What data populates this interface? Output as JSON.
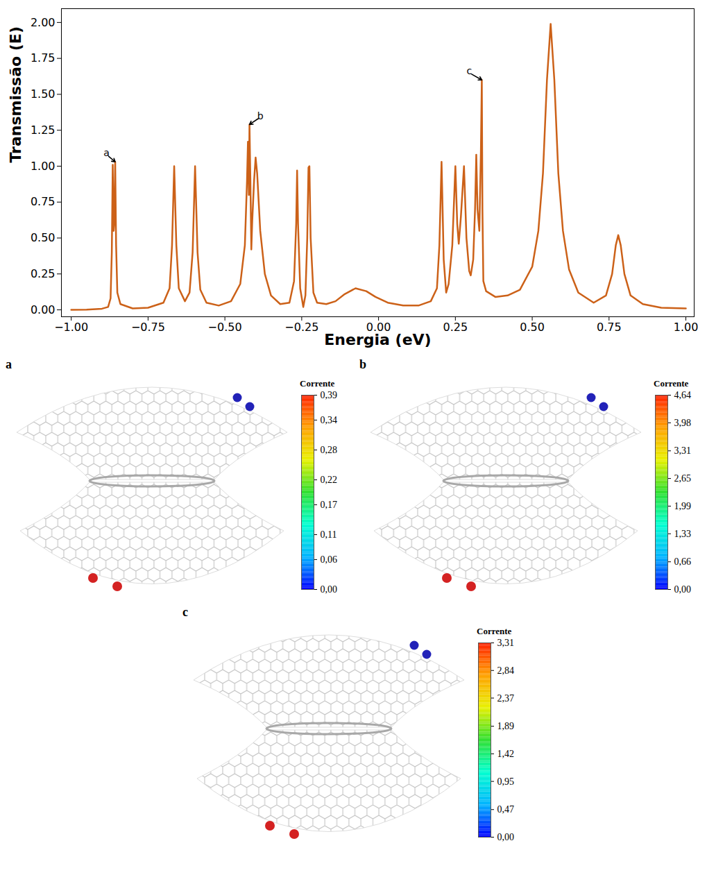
{
  "chart_data": [
    {
      "type": "line",
      "xlabel": "Energia (eV)",
      "ylabel": "Transmissão (E)",
      "color": "#cc6118",
      "x": [
        -1,
        -0.95,
        -0.9,
        -0.88,
        -0.872,
        -0.868,
        -0.865,
        -0.862,
        -0.86,
        -0.857,
        -0.854,
        -0.85,
        -0.84,
        -0.8,
        -0.75,
        -0.7,
        -0.68,
        -0.672,
        -0.665,
        -0.658,
        -0.65,
        -0.63,
        -0.615,
        -0.605,
        -0.597,
        -0.589,
        -0.58,
        -0.56,
        -0.52,
        -0.48,
        -0.45,
        -0.435,
        -0.428,
        -0.425,
        -0.422,
        -0.42,
        -0.417,
        -0.414,
        -0.411,
        -0.405,
        -0.4,
        -0.395,
        -0.385,
        -0.37,
        -0.35,
        -0.32,
        -0.29,
        -0.275,
        -0.268,
        -0.265,
        -0.262,
        -0.255,
        -0.245,
        -0.238,
        -0.232,
        -0.228,
        -0.225,
        -0.221,
        -0.212,
        -0.2,
        -0.17,
        -0.14,
        -0.11,
        -0.075,
        -0.04,
        -0.01,
        0.03,
        0.08,
        0.13,
        0.17,
        0.19,
        0.198,
        0.205,
        0.212,
        0.22,
        0.228,
        0.24,
        0.25,
        0.256,
        0.261,
        0.268,
        0.278,
        0.286,
        0.295,
        0.3,
        0.308,
        0.314,
        0.318,
        0.322,
        0.328,
        0.333,
        0.336,
        0.338,
        0.341,
        0.35,
        0.38,
        0.42,
        0.46,
        0.5,
        0.52,
        0.535,
        0.548,
        0.56,
        0.572,
        0.585,
        0.6,
        0.62,
        0.65,
        0.7,
        0.74,
        0.76,
        0.772,
        0.78,
        0.788,
        0.8,
        0.82,
        0.86,
        0.92,
        1.0
      ],
      "values": [
        0.0,
        0.002,
        0.008,
        0.02,
        0.08,
        0.4,
        1.01,
        0.55,
        0.6,
        1.03,
        0.45,
        0.12,
        0.04,
        0.01,
        0.015,
        0.05,
        0.15,
        0.45,
        1.0,
        0.45,
        0.15,
        0.06,
        0.12,
        0.4,
        1.0,
        0.4,
        0.14,
        0.05,
        0.03,
        0.06,
        0.18,
        0.45,
        0.9,
        1.17,
        0.8,
        1.29,
        0.9,
        0.42,
        0.62,
        0.9,
        1.06,
        0.95,
        0.55,
        0.25,
        0.1,
        0.04,
        0.05,
        0.2,
        0.6,
        0.97,
        0.6,
        0.15,
        0.02,
        0.1,
        0.5,
        0.99,
        1.0,
        0.5,
        0.12,
        0.05,
        0.04,
        0.06,
        0.11,
        0.15,
        0.13,
        0.09,
        0.05,
        0.03,
        0.03,
        0.06,
        0.15,
        0.45,
        1.03,
        0.35,
        0.12,
        0.18,
        0.45,
        1.0,
        0.6,
        0.46,
        0.65,
        1.0,
        0.5,
        0.27,
        0.24,
        0.35,
        0.7,
        1.08,
        0.7,
        0.55,
        1.1,
        1.6,
        0.7,
        0.2,
        0.13,
        0.09,
        0.1,
        0.14,
        0.3,
        0.55,
        0.95,
        1.6,
        1.99,
        1.6,
        0.95,
        0.55,
        0.28,
        0.12,
        0.05,
        0.1,
        0.25,
        0.45,
        0.52,
        0.45,
        0.25,
        0.1,
        0.04,
        0.015,
        0.01
      ],
      "xlim": [
        -1.032,
        1.027
      ],
      "ylim": [
        -0.048,
        2.096
      ],
      "xticks": [
        {
          "value": -1,
          "label": "−1.00"
        },
        {
          "value": -0.75,
          "label": "−0.75"
        },
        {
          "value": -0.5,
          "label": "−0.50"
        },
        {
          "value": -0.25,
          "label": "−0.25"
        },
        {
          "value": 0,
          "label": "0.00"
        },
        {
          "value": 0.25,
          "label": "0.25"
        },
        {
          "value": 0.5,
          "label": "0.50"
        },
        {
          "value": 0.75,
          "label": "0.75"
        },
        {
          "value": 1,
          "label": "1.00"
        }
      ],
      "yticks": [
        {
          "value": 0,
          "label": "0.00"
        },
        {
          "value": 0.25,
          "label": "0.25"
        },
        {
          "value": 0.5,
          "label": "0.50"
        },
        {
          "value": 0.75,
          "label": "0.75"
        },
        {
          "value": 1,
          "label": "1.00"
        },
        {
          "value": 1.25,
          "label": "1.25"
        },
        {
          "value": 1.5,
          "label": "1.50"
        },
        {
          "value": 1.75,
          "label": "1.75"
        },
        {
          "value": 2,
          "label": "2.00"
        }
      ],
      "annotations": [
        {
          "text": "a",
          "x": -0.857,
          "y": 1.03,
          "xytext": [
            -0.885,
            1.08
          ]
        },
        {
          "text": "b",
          "x": -0.42,
          "y": 1.29,
          "xytext": [
            -0.385,
            1.34
          ]
        },
        {
          "text": "c",
          "x": 0.336,
          "y": 1.6,
          "xytext": [
            0.295,
            1.65
          ]
        }
      ]
    },
    {
      "type": "colorbar",
      "title": "a",
      "label": "Corrente",
      "range": [
        0,
        0.39
      ],
      "ticks": [
        {
          "value": 0,
          "label": "0,00"
        },
        {
          "value": 0.06,
          "label": "0,06"
        },
        {
          "value": 0.11,
          "label": "0,11"
        },
        {
          "value": 0.17,
          "label": "0,17"
        },
        {
          "value": 0.22,
          "label": "0,22"
        },
        {
          "value": 0.28,
          "label": "0,28"
        },
        {
          "value": 0.34,
          "label": "0,34"
        },
        {
          "value": 0.39,
          "label": "0,39"
        }
      ]
    },
    {
      "type": "colorbar",
      "title": "b",
      "label": "Corrente",
      "range": [
        0,
        4.64
      ],
      "ticks": [
        {
          "value": 0,
          "label": "0,00"
        },
        {
          "value": 0.66,
          "label": "0,66"
        },
        {
          "value": 1.33,
          "label": "1,33"
        },
        {
          "value": 1.99,
          "label": "1,99"
        },
        {
          "value": 2.65,
          "label": "2,65"
        },
        {
          "value": 3.31,
          "label": "3,31"
        },
        {
          "value": 3.98,
          "label": "3,98"
        },
        {
          "value": 4.64,
          "label": "4,64"
        }
      ]
    },
    {
      "type": "colorbar",
      "title": "c",
      "label": "Corrente",
      "range": [
        0,
        3.31
      ],
      "ticks": [
        {
          "value": 0,
          "label": "0,00"
        },
        {
          "value": 0.47,
          "label": "0,47"
        },
        {
          "value": 0.95,
          "label": "0,95"
        },
        {
          "value": 1.42,
          "label": "1,42"
        },
        {
          "value": 1.89,
          "label": "1,89"
        },
        {
          "value": 2.37,
          "label": "2,37"
        },
        {
          "value": 2.84,
          "label": "2,84"
        },
        {
          "value": 3.31,
          "label": "3,31"
        }
      ]
    }
  ]
}
